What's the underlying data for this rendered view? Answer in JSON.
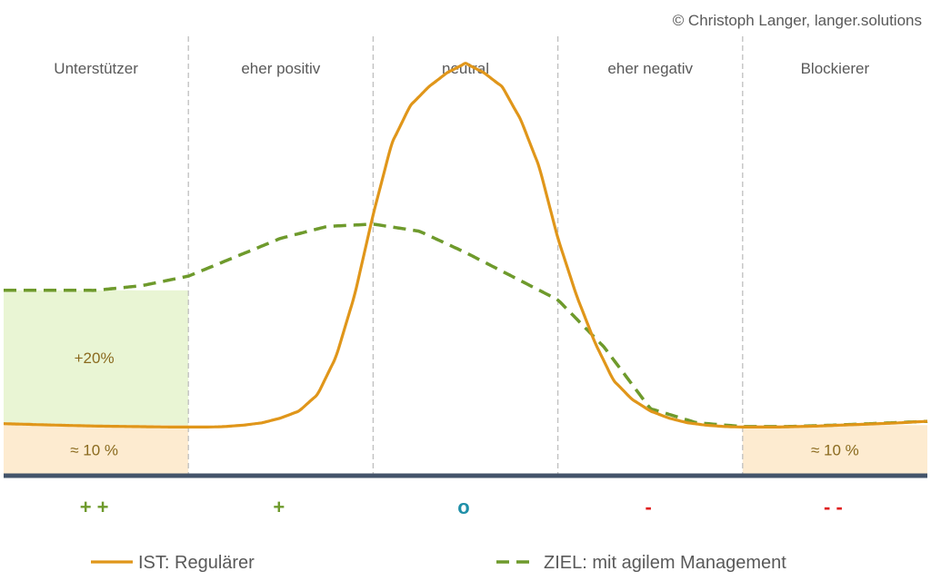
{
  "copyright": "© Christoph Langer, langer.solutions",
  "colors": {
    "ist": "#E0961A",
    "ziel": "#6E9A2C",
    "green_fill": "#E9F5D4",
    "orange_fill": "#FDEBD0",
    "baseline": "#44546A",
    "divider": "#BFBFBF",
    "text": "#595959",
    "shade_text": "#8A6A1E",
    "sign_positive": "#6E9A2C",
    "sign_neutral": "#1E8FA8",
    "sign_negative": "#E02020"
  },
  "chart_data": {
    "type": "line",
    "title": "",
    "xlabel": "",
    "ylabel": "",
    "categories": [
      "Unterstützer",
      "eher positiv",
      "neutral",
      "eher negativ",
      "Blockierer"
    ],
    "category_signs": [
      "+ +",
      "+",
      "o",
      "-",
      "- -"
    ],
    "category_sign_colors": [
      "#6E9A2C",
      "#6E9A2C",
      "#1E8FA8",
      "#E02020",
      "#E02020"
    ],
    "series": [
      {
        "name": "IST: Regulärer",
        "style": "solid",
        "color": "#E0961A",
        "x": [
          0,
          0.1,
          0.2,
          0.3,
          0.4,
          0.5,
          0.6,
          0.7,
          0.8,
          0.9,
          1.0,
          1.1,
          1.2,
          1.3,
          1.4,
          1.5,
          1.6,
          1.7,
          1.8,
          1.9,
          2.0,
          2.1,
          2.2,
          2.3,
          2.4,
          2.5,
          2.6,
          2.7,
          2.8,
          2.9,
          3.0,
          3.1,
          3.2,
          3.3,
          3.4,
          3.5,
          3.6,
          3.7,
          3.8,
          3.9,
          4.0,
          4.2,
          4.4,
          4.6,
          4.8,
          5.0
        ],
        "values": [
          10.8,
          10.7,
          10.6,
          10.5,
          10.4,
          10.3,
          10.25,
          10.2,
          10.15,
          10.1,
          10.1,
          10.1,
          10.2,
          10.5,
          11.0,
          12.0,
          13.5,
          17.0,
          25.0,
          38.0,
          55.0,
          70.0,
          78.0,
          82.0,
          85.0,
          87.0,
          85.0,
          82.0,
          75.0,
          65.0,
          50.0,
          38.0,
          28.0,
          20.0,
          16.0,
          13.5,
          12.0,
          11.0,
          10.5,
          10.2,
          10.1,
          10.1,
          10.3,
          10.6,
          10.9,
          11.3
        ]
      },
      {
        "name": "ZIEL: mit agilem Management",
        "style": "dashed",
        "color": "#6E9A2C",
        "x": [
          0,
          0.25,
          0.5,
          0.75,
          1.0,
          1.25,
          1.5,
          1.75,
          2.0,
          2.25,
          2.5,
          2.75,
          3.0,
          3.25,
          3.5,
          3.75,
          4.0,
          4.25,
          4.5,
          4.75,
          5.0
        ],
        "values": [
          39.0,
          39.0,
          39.0,
          40.0,
          42.0,
          46.0,
          50.0,
          52.5,
          53.0,
          51.5,
          47.0,
          42.0,
          37.0,
          27.0,
          14.0,
          11.0,
          10.2,
          10.2,
          10.5,
          10.9,
          11.3
        ]
      }
    ],
    "ylim": [
      0,
      100
    ],
    "xlim": [
      0,
      5
    ],
    "annotations": [
      {
        "text": "+20%",
        "region": "Unterstützer",
        "range": [
          10.5,
          39.0
        ]
      },
      {
        "text": "≈ 10 %",
        "region": "Unterstützer",
        "range": [
          0,
          10.5
        ]
      },
      {
        "text": "≈ 10 %",
        "region": "Blockierer",
        "range": [
          0,
          10.5
        ]
      }
    ],
    "grid": false,
    "legend": "bottom"
  }
}
